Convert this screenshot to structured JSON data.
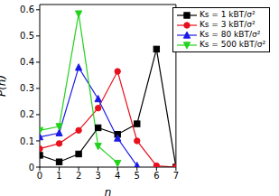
{
  "chart_data": {
    "type": "line",
    "x_label": "n",
    "y_label": "P(n)",
    "x": [
      0,
      1,
      2,
      3,
      4,
      5,
      6,
      7
    ],
    "xlim": [
      0,
      7
    ],
    "xticks": [
      0,
      1,
      2,
      3,
      4,
      5,
      6,
      7
    ],
    "ylim": [
      0,
      0.62
    ],
    "yticks": [
      0,
      0.1,
      0.2,
      0.3,
      0.4,
      0.5,
      0.6
    ],
    "legend": "upper right",
    "series": [
      {
        "name": "Ks = 1 kBT/σ²",
        "color": "#000000",
        "marker": "square",
        "values": [
          0.045,
          0.02,
          0.05,
          0.15,
          0.125,
          0.165,
          0.45,
          0.0
        ]
      },
      {
        "name": "Ks = 3 kBT/σ²",
        "color": "#e8101c",
        "marker": "circle",
        "values": [
          0.07,
          0.09,
          0.14,
          0.225,
          0.365,
          0.1,
          0.005,
          0.0
        ]
      },
      {
        "name": "Ks = 80 kBT/σ²",
        "color": "#1a1ae6",
        "marker": "triangle-up",
        "values": [
          0.115,
          0.13,
          0.38,
          0.26,
          0.11,
          0.005,
          null,
          null
        ]
      },
      {
        "name": "Ks = 500 kBT/σ²",
        "color": "#22d21e",
        "marker": "triangle-down",
        "values": [
          0.14,
          0.155,
          0.585,
          0.08,
          0.015,
          null,
          null,
          null
        ]
      }
    ]
  }
}
